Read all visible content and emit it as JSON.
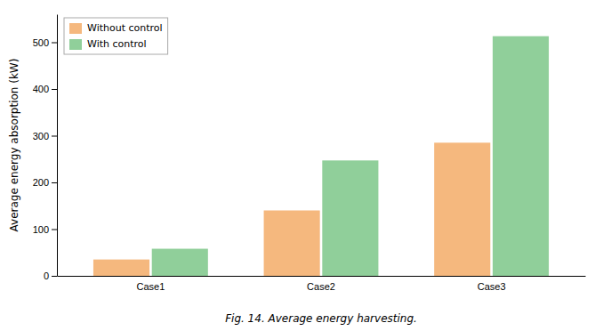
{
  "chart_data": {
    "type": "bar",
    "categories": [
      "Case1",
      "Case2",
      "Case3"
    ],
    "series": [
      {
        "name": "Without control",
        "color": "#F5B87E",
        "values": [
          35,
          140,
          285
        ]
      },
      {
        "name": "With control",
        "color": "#90CF9A",
        "values": [
          58,
          247,
          513
        ]
      }
    ],
    "ylabel": "Average energy absorption (kW)",
    "caption": "Fig. 14. Average energy harvesting.",
    "ylim": [
      0,
      560
    ],
    "yticks": [
      0,
      100,
      200,
      300,
      400,
      500
    ],
    "legend": "upper left",
    "grid": false
  }
}
